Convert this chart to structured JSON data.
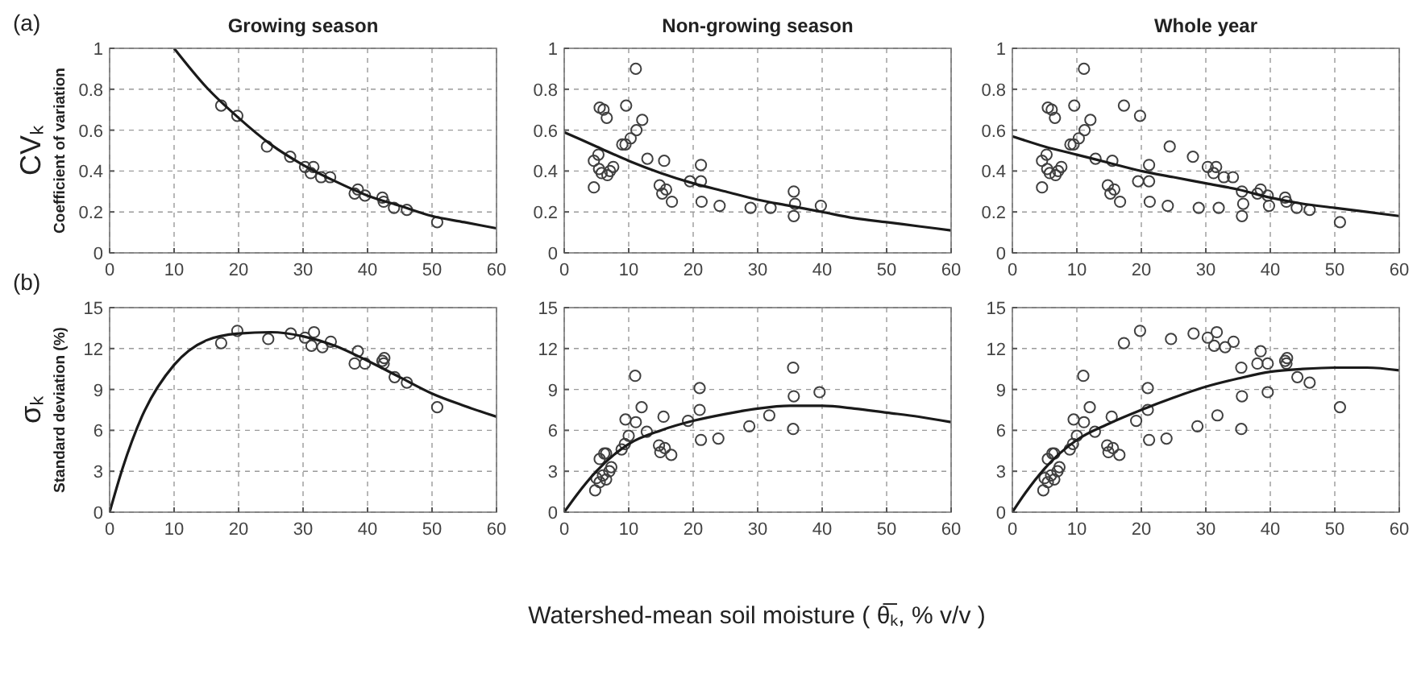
{
  "chart_data": [
    {
      "type": "scatter",
      "title": "Growing season",
      "ylabel": "Coefficient of variation",
      "annotations": [
        "(a)",
        "CVₖ"
      ],
      "xlim": [
        0,
        60
      ],
      "xticks": [
        0,
        10,
        20,
        30,
        40,
        50,
        60
      ],
      "ylim": [
        0,
        1
      ],
      "yticks": [
        0,
        0.2,
        0.4,
        0.6,
        0.8,
        1
      ],
      "grid": true,
      "series": [
        {
          "marker": "circle",
          "color": "#404040",
          "x": [
            17.3,
            19.8,
            24.4,
            28.0,
            30.3,
            31.6,
            31.2,
            32.8,
            34.2,
            38.0,
            38.5,
            39.6,
            42.3,
            42.5,
            44.1,
            46.1,
            50.8
          ],
          "values": [
            0.72,
            0.67,
            0.52,
            0.47,
            0.42,
            0.42,
            0.39,
            0.37,
            0.37,
            0.29,
            0.31,
            0.28,
            0.27,
            0.25,
            0.22,
            0.21,
            0.15
          ]
        },
        {
          "type": "line",
          "color": "#1a1a1a",
          "x": [
            10,
            15,
            20,
            25,
            30,
            35,
            40,
            45,
            50,
            55,
            60
          ],
          "values": [
            1.0,
            0.81,
            0.66,
            0.53,
            0.43,
            0.35,
            0.28,
            0.23,
            0.18,
            0.15,
            0.12
          ]
        }
      ]
    },
    {
      "type": "scatter",
      "title": "Non-growing season",
      "xlim": [
        0,
        60
      ],
      "xticks": [
        0,
        10,
        20,
        30,
        40,
        50,
        60
      ],
      "ylim": [
        0,
        1
      ],
      "yticks": [
        0,
        0.2,
        0.4,
        0.6,
        0.8,
        1
      ],
      "grid": true,
      "series": [
        {
          "marker": "circle",
          "color": "#404040",
          "x": [
            11.1,
            5.5,
            6.1,
            6.6,
            9.6,
            12.1,
            11.2,
            10.3,
            9.0,
            9.5,
            4.6,
            5.3,
            12.9,
            15.5,
            4.6,
            5.4,
            5.8,
            6.7,
            7.1,
            7.6,
            14.8,
            15.2,
            15.8,
            16.7,
            19.5,
            21.2,
            21.2,
            21.3,
            24.1,
            28.9,
            32.0,
            35.6,
            35.8,
            35.6,
            39.8
          ],
          "values": [
            0.9,
            0.71,
            0.7,
            0.66,
            0.72,
            0.65,
            0.6,
            0.56,
            0.53,
            0.53,
            0.45,
            0.48,
            0.46,
            0.45,
            0.32,
            0.41,
            0.39,
            0.38,
            0.4,
            0.42,
            0.33,
            0.29,
            0.31,
            0.25,
            0.35,
            0.43,
            0.35,
            0.25,
            0.23,
            0.22,
            0.22,
            0.3,
            0.24,
            0.18,
            0.23
          ]
        },
        {
          "type": "line",
          "color": "#1a1a1a",
          "x": [
            0,
            5,
            10,
            15,
            20,
            25,
            30,
            35,
            40,
            45,
            50,
            55,
            60
          ],
          "values": [
            0.59,
            0.52,
            0.45,
            0.39,
            0.34,
            0.3,
            0.26,
            0.23,
            0.2,
            0.17,
            0.15,
            0.13,
            0.11
          ]
        }
      ]
    },
    {
      "type": "scatter",
      "title": "Whole year",
      "xlim": [
        0,
        60
      ],
      "xticks": [
        0,
        10,
        20,
        30,
        40,
        50,
        60
      ],
      "ylim": [
        0,
        1
      ],
      "yticks": [
        0,
        0.2,
        0.4,
        0.6,
        0.8,
        1
      ],
      "grid": true,
      "series": [
        {
          "marker": "circle",
          "color": "#404040",
          "x": [
            17.3,
            19.8,
            24.4,
            28.0,
            30.3,
            31.6,
            31.2,
            32.8,
            34.2,
            38.0,
            38.5,
            39.6,
            42.3,
            42.5,
            44.1,
            46.1,
            50.8,
            11.1,
            5.5,
            6.1,
            6.6,
            9.6,
            12.1,
            11.2,
            10.3,
            9.0,
            9.5,
            4.6,
            5.3,
            12.9,
            15.5,
            4.6,
            5.4,
            5.8,
            6.7,
            7.1,
            7.6,
            14.8,
            15.2,
            15.8,
            16.7,
            19.5,
            21.2,
            21.2,
            21.3,
            24.1,
            28.9,
            32.0,
            35.6,
            35.8,
            35.6,
            39.8
          ],
          "values": [
            0.72,
            0.67,
            0.52,
            0.47,
            0.42,
            0.42,
            0.39,
            0.37,
            0.37,
            0.29,
            0.31,
            0.28,
            0.27,
            0.25,
            0.22,
            0.21,
            0.15,
            0.9,
            0.71,
            0.7,
            0.66,
            0.72,
            0.65,
            0.6,
            0.56,
            0.53,
            0.53,
            0.45,
            0.48,
            0.46,
            0.45,
            0.32,
            0.41,
            0.39,
            0.38,
            0.4,
            0.42,
            0.33,
            0.29,
            0.31,
            0.25,
            0.35,
            0.43,
            0.35,
            0.25,
            0.23,
            0.22,
            0.22,
            0.3,
            0.24,
            0.18,
            0.23
          ]
        },
        {
          "type": "line",
          "color": "#1a1a1a",
          "x": [
            0,
            5,
            10,
            15,
            20,
            25,
            30,
            35,
            40,
            45,
            50,
            55,
            60
          ],
          "values": [
            0.57,
            0.52,
            0.48,
            0.44,
            0.4,
            0.37,
            0.34,
            0.31,
            0.27,
            0.24,
            0.22,
            0.2,
            0.18
          ]
        }
      ]
    },
    {
      "type": "scatter",
      "ylabel": "Standard deviation (%)",
      "annotations": [
        "(b)",
        "σₖ"
      ],
      "xlim": [
        0,
        60
      ],
      "xticks": [
        0,
        10,
        20,
        30,
        40,
        50,
        60
      ],
      "ylim": [
        0,
        15
      ],
      "yticks": [
        0,
        3,
        6,
        9,
        12,
        15
      ],
      "grid": true,
      "series": [
        {
          "marker": "circle",
          "color": "#404040",
          "x": [
            17.3,
            19.8,
            24.6,
            28.1,
            30.3,
            31.3,
            31.7,
            33.0,
            34.3,
            38.0,
            38.5,
            39.6,
            42.3,
            42.6,
            42.5,
            44.2,
            46.1,
            50.8
          ],
          "values": [
            12.4,
            13.3,
            12.7,
            13.1,
            12.8,
            12.2,
            13.2,
            12.1,
            12.5,
            10.9,
            11.8,
            10.9,
            11.1,
            11.3,
            10.9,
            9.9,
            9.5,
            7.7
          ]
        },
        {
          "type": "line",
          "color": "#1a1a1a",
          "x": [
            0,
            2,
            5,
            10,
            15,
            20,
            25,
            30,
            35,
            40,
            45,
            50,
            55,
            60
          ],
          "values": [
            0,
            3.2,
            7.0,
            10.8,
            12.6,
            13.1,
            13.2,
            12.9,
            12.2,
            11.1,
            9.9,
            8.7,
            7.8,
            7.0
          ]
        }
      ]
    },
    {
      "type": "scatter",
      "xlabel": "Watershed-mean soil moisture ( θ̅ₖ, % v/v )",
      "xlim": [
        0,
        60
      ],
      "xticks": [
        0,
        10,
        20,
        30,
        40,
        50,
        60
      ],
      "ylim": [
        0,
        15
      ],
      "yticks": [
        0,
        3,
        6,
        9,
        12,
        15
      ],
      "grid": true,
      "series": [
        {
          "marker": "circle",
          "color": "#404040",
          "x": [
            11.0,
            35.5,
            35.6,
            39.6,
            21.0,
            21.0,
            12.0,
            9.5,
            11.1,
            15.4,
            19.2,
            12.8,
            10.0,
            14.7,
            15.6,
            14.9,
            16.6,
            21.2,
            23.9,
            28.7,
            31.8,
            35.5,
            8.9,
            9.4,
            6.2,
            5.5,
            7.3,
            6.5,
            5.0,
            5.5,
            6.0,
            6.5,
            4.8,
            7.0
          ],
          "values": [
            10.0,
            10.6,
            8.5,
            8.8,
            9.1,
            7.5,
            7.7,
            6.8,
            6.6,
            7.0,
            6.7,
            5.9,
            5.6,
            4.9,
            4.7,
            4.4,
            4.2,
            5.3,
            5.4,
            6.3,
            7.1,
            6.1,
            4.6,
            5.0,
            4.3,
            3.9,
            3.3,
            4.3,
            2.5,
            2.2,
            2.7,
            2.4,
            1.6,
            3.0
          ]
        },
        {
          "type": "line",
          "color": "#1a1a1a",
          "x": [
            0,
            2,
            5,
            10,
            15,
            20,
            25,
            30,
            35,
            40,
            45,
            50,
            55,
            60
          ],
          "values": [
            0,
            1.3,
            3.0,
            5.0,
            6.0,
            6.7,
            7.2,
            7.6,
            7.8,
            7.8,
            7.6,
            7.3,
            7.0,
            6.6
          ]
        }
      ]
    },
    {
      "type": "scatter",
      "xlim": [
        0,
        60
      ],
      "xticks": [
        0,
        10,
        20,
        30,
        40,
        50,
        60
      ],
      "ylim": [
        0,
        15
      ],
      "yticks": [
        0,
        3,
        6,
        9,
        12,
        15
      ],
      "grid": true,
      "series": [
        {
          "marker": "circle",
          "color": "#404040",
          "x": [
            17.3,
            19.8,
            24.6,
            28.1,
            30.3,
            31.3,
            31.7,
            33.0,
            34.3,
            38.0,
            38.5,
            39.6,
            42.3,
            42.6,
            42.5,
            44.2,
            46.1,
            50.8,
            11.0,
            35.5,
            35.6,
            39.6,
            21.0,
            21.0,
            12.0,
            9.5,
            11.1,
            15.4,
            19.2,
            12.8,
            10.0,
            14.7,
            15.6,
            14.9,
            16.6,
            21.2,
            23.9,
            28.7,
            31.8,
            35.5,
            8.9,
            9.4,
            6.2,
            5.5,
            7.3,
            6.5,
            5.0,
            5.5,
            6.0,
            6.5,
            4.8,
            7.0
          ],
          "values": [
            12.4,
            13.3,
            12.7,
            13.1,
            12.8,
            12.2,
            13.2,
            12.1,
            12.5,
            10.9,
            11.8,
            10.9,
            11.1,
            11.3,
            10.9,
            9.9,
            9.5,
            7.7,
            10.0,
            10.6,
            8.5,
            8.8,
            9.1,
            7.5,
            7.7,
            6.8,
            6.6,
            7.0,
            6.7,
            5.9,
            5.6,
            4.9,
            4.7,
            4.4,
            4.2,
            5.3,
            5.4,
            6.3,
            7.1,
            6.1,
            4.6,
            5.0,
            4.3,
            3.9,
            3.3,
            4.3,
            2.5,
            2.2,
            2.7,
            2.4,
            1.6,
            3.0
          ]
        },
        {
          "type": "line",
          "color": "#1a1a1a",
          "x": [
            0,
            2,
            5,
            10,
            15,
            20,
            25,
            30,
            35,
            40,
            45,
            50,
            55,
            60
          ],
          "values": [
            0,
            1.4,
            3.2,
            5.3,
            6.5,
            7.5,
            8.4,
            9.2,
            9.8,
            10.3,
            10.5,
            10.6,
            10.6,
            10.4
          ]
        }
      ]
    }
  ]
}
